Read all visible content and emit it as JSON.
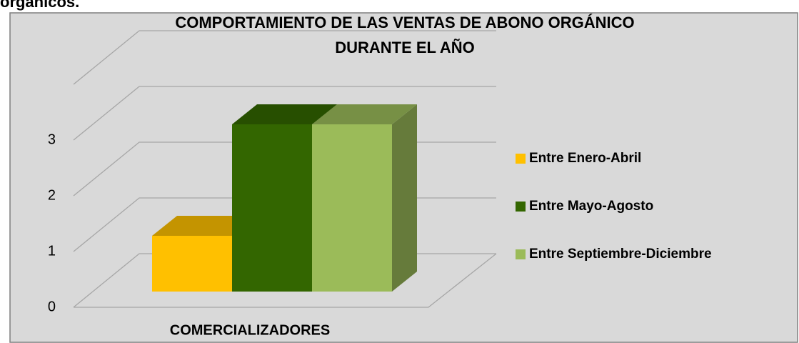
{
  "caption": "orgánicos.",
  "chart_data": {
    "type": "bar3d",
    "title": [
      "COMPORTAMIENTO DE LAS VENTAS DE ABONO ORGÁNICO",
      "DURANTE EL AÑO"
    ],
    "categories": [
      "COMERCIALIZADORES"
    ],
    "series": [
      {
        "name": "Entre Enero-Abril",
        "color": "#ffc000",
        "values": [
          1
        ]
      },
      {
        "name": "Entre Mayo-Agosto",
        "color": "#336600",
        "values": [
          3
        ]
      },
      {
        "name": "Entre Septiembre-Diciembre",
        "color": "#9bbb59",
        "values": [
          3
        ]
      }
    ],
    "ylim": [
      0,
      4
    ],
    "yticks": [
      0,
      1,
      2,
      3
    ],
    "grid": true,
    "legend": "right"
  }
}
